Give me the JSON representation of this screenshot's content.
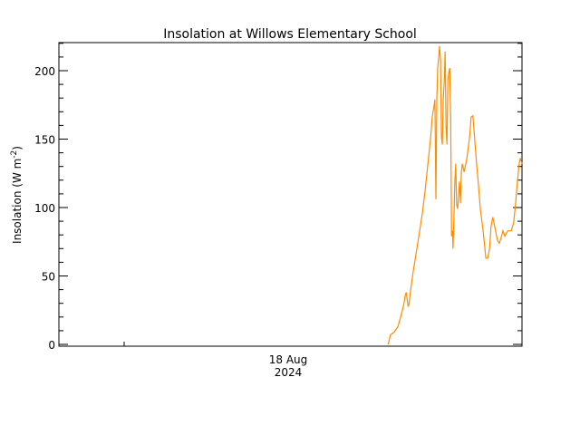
{
  "chart_data": {
    "type": "line",
    "title": "Insolation at Willows Elementary School",
    "xlabel": "",
    "ylabel": "Insolation (W m^-2)",
    "ylabel_parts": {
      "main": "Insolation (W m",
      "sup": "-2",
      "close": ")"
    },
    "ylim": [
      0,
      220
    ],
    "yticks": [
      0,
      50,
      100,
      150,
      200
    ],
    "ytick_labels": [
      "0",
      "50",
      "100",
      "150",
      "200"
    ],
    "y_minor_step": 10,
    "xtick_labels": [
      {
        "line1": "18 Aug",
        "line2": "2024"
      }
    ],
    "grid": false,
    "legend": null,
    "series": [
      {
        "name": "Insolation",
        "color": "#ff8c00",
        "note": "approximate values read off the plot; x is fraction of the plotted time window (0 to 1)",
        "x": [
          0.711,
          0.716,
          0.724,
          0.732,
          0.738,
          0.744,
          0.748,
          0.75,
          0.754,
          0.756,
          0.759,
          0.765,
          0.773,
          0.779,
          0.785,
          0.791,
          0.795,
          0.799,
          0.803,
          0.806,
          0.81,
          0.812,
          0.814,
          0.816,
          0.818,
          0.82,
          0.822,
          0.824,
          0.826,
          0.828,
          0.83,
          0.832,
          0.834,
          0.836,
          0.838,
          0.84,
          0.842,
          0.844,
          0.846,
          0.848,
          0.85,
          0.851,
          0.853,
          0.855,
          0.857,
          0.859,
          0.861,
          0.865,
          0.867,
          0.869,
          0.871,
          0.875,
          0.881,
          0.887,
          0.89,
          0.894,
          0.898,
          0.902,
          0.906,
          0.91,
          0.916,
          0.922,
          0.926,
          0.93,
          0.933,
          0.937,
          0.941,
          0.947,
          0.951,
          0.955,
          0.959,
          0.963,
          0.969,
          0.977,
          0.982,
          0.986,
          0.99,
          0.994,
          0.996,
          1.0
        ],
        "values": [
          0,
          7,
          9,
          13,
          20,
          28,
          36,
          38,
          28,
          29,
          38,
          53,
          70,
          83,
          96,
          113,
          126,
          139,
          152,
          166,
          174,
          179,
          106,
          179,
          202,
          209,
          218,
          207,
          152,
          146,
          179,
          192,
          214,
          159,
          146,
          193,
          199,
          202,
          166,
          79,
          83,
          70,
          93,
          119,
          132,
          102,
          99,
          119,
          103,
          126,
          132,
          126,
          136,
          152,
          166,
          167,
          149,
          132,
          116,
          99,
          83,
          63,
          63,
          70,
          86,
          93,
          86,
          76,
          74,
          78,
          83,
          79,
          83,
          83,
          89,
          102,
          119,
          132,
          136,
          132
        ]
      }
    ]
  }
}
